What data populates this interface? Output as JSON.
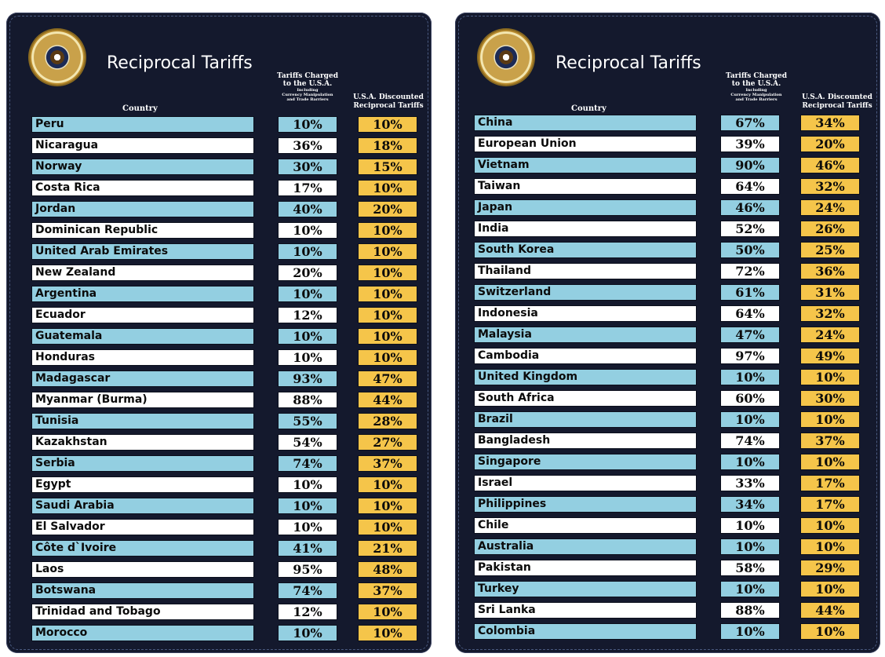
{
  "left": {
    "title": "Reciprocal Tariffs",
    "header": {
      "country": "Country",
      "charged_line1": "Tariffs Charged",
      "charged_line2": "to the U.S.A.",
      "charged_line3": "Including",
      "charged_line4": "Currency Manipulation",
      "charged_line5": "and Trade Barriers",
      "discounted_line1": "U.S.A. Discounted",
      "discounted_line2": "Reciprocal Tariffs"
    },
    "rows": [
      {
        "country": "Peru",
        "charged": "10%",
        "discounted": "10%"
      },
      {
        "country": "Nicaragua",
        "charged": "36%",
        "discounted": "18%"
      },
      {
        "country": "Norway",
        "charged": "30%",
        "discounted": "15%"
      },
      {
        "country": "Costa Rica",
        "charged": "17%",
        "discounted": "10%"
      },
      {
        "country": "Jordan",
        "charged": "40%",
        "discounted": "20%"
      },
      {
        "country": "Dominican Republic",
        "charged": "10%",
        "discounted": "10%"
      },
      {
        "country": "United Arab Emirates",
        "charged": "10%",
        "discounted": "10%"
      },
      {
        "country": "New Zealand",
        "charged": "20%",
        "discounted": "10%"
      },
      {
        "country": "Argentina",
        "charged": "10%",
        "discounted": "10%"
      },
      {
        "country": "Ecuador",
        "charged": "12%",
        "discounted": "10%"
      },
      {
        "country": "Guatemala",
        "charged": "10%",
        "discounted": "10%"
      },
      {
        "country": "Honduras",
        "charged": "10%",
        "discounted": "10%"
      },
      {
        "country": "Madagascar",
        "charged": "93%",
        "discounted": "47%"
      },
      {
        "country": "Myanmar (Burma)",
        "charged": "88%",
        "discounted": "44%"
      },
      {
        "country": "Tunisia",
        "charged": "55%",
        "discounted": "28%"
      },
      {
        "country": "Kazakhstan",
        "charged": "54%",
        "discounted": "27%"
      },
      {
        "country": "Serbia",
        "charged": "74%",
        "discounted": "37%"
      },
      {
        "country": "Egypt",
        "charged": "10%",
        "discounted": "10%"
      },
      {
        "country": "Saudi Arabia",
        "charged": "10%",
        "discounted": "10%"
      },
      {
        "country": "El Salvador",
        "charged": "10%",
        "discounted": "10%"
      },
      {
        "country": "Côte d`Ivoire",
        "charged": "41%",
        "discounted": "21%"
      },
      {
        "country": "Laos",
        "charged": "95%",
        "discounted": "48%"
      },
      {
        "country": "Botswana",
        "charged": "74%",
        "discounted": "37%"
      },
      {
        "country": "Trinidad and Tobago",
        "charged": "12%",
        "discounted": "10%"
      },
      {
        "country": "Morocco",
        "charged": "10%",
        "discounted": "10%"
      }
    ]
  },
  "right": {
    "title": "Reciprocal Tariffs",
    "header": {
      "country": "Country",
      "charged_line1": "Tariffs Charged",
      "charged_line2": "to the U.S.A.",
      "charged_line3": "Including",
      "charged_line4": "Currency Manipulation",
      "charged_line5": "and Trade Barriers",
      "discounted_line1": "U.S.A. Discounted",
      "discounted_line2": "Reciprocal Tariffs"
    },
    "rows": [
      {
        "country": "China",
        "charged": "67%",
        "discounted": "34%"
      },
      {
        "country": "European Union",
        "charged": "39%",
        "discounted": "20%"
      },
      {
        "country": "Vietnam",
        "charged": "90%",
        "discounted": "46%"
      },
      {
        "country": "Taiwan",
        "charged": "64%",
        "discounted": "32%"
      },
      {
        "country": "Japan",
        "charged": "46%",
        "discounted": "24%"
      },
      {
        "country": "India",
        "charged": "52%",
        "discounted": "26%"
      },
      {
        "country": "South Korea",
        "charged": "50%",
        "discounted": "25%"
      },
      {
        "country": "Thailand",
        "charged": "72%",
        "discounted": "36%"
      },
      {
        "country": "Switzerland",
        "charged": "61%",
        "discounted": "31%"
      },
      {
        "country": "Indonesia",
        "charged": "64%",
        "discounted": "32%"
      },
      {
        "country": "Malaysia",
        "charged": "47%",
        "discounted": "24%"
      },
      {
        "country": "Cambodia",
        "charged": "97%",
        "discounted": "49%"
      },
      {
        "country": "United Kingdom",
        "charged": "10%",
        "discounted": "10%"
      },
      {
        "country": "South Africa",
        "charged": "60%",
        "discounted": "30%"
      },
      {
        "country": "Brazil",
        "charged": "10%",
        "discounted": "10%"
      },
      {
        "country": "Bangladesh",
        "charged": "74%",
        "discounted": "37%"
      },
      {
        "country": "Singapore",
        "charged": "10%",
        "discounted": "10%"
      },
      {
        "country": "Israel",
        "charged": "33%",
        "discounted": "17%"
      },
      {
        "country": "Philippines",
        "charged": "34%",
        "discounted": "17%"
      },
      {
        "country": "Chile",
        "charged": "10%",
        "discounted": "10%"
      },
      {
        "country": "Australia",
        "charged": "10%",
        "discounted": "10%"
      },
      {
        "country": "Pakistan",
        "charged": "58%",
        "discounted": "29%"
      },
      {
        "country": "Turkey",
        "charged": "10%",
        "discounted": "10%"
      },
      {
        "country": "Sri Lanka",
        "charged": "88%",
        "discounted": "44%"
      },
      {
        "country": "Colombia",
        "charged": "10%",
        "discounted": "10%"
      }
    ]
  },
  "colors": {
    "panel_bg": "#14192d",
    "row_blue": "#93cfe1",
    "row_white": "#ffffff",
    "discount_gold": "#f5c54a"
  },
  "icons": {
    "seal": "presidential-seal-icon"
  }
}
